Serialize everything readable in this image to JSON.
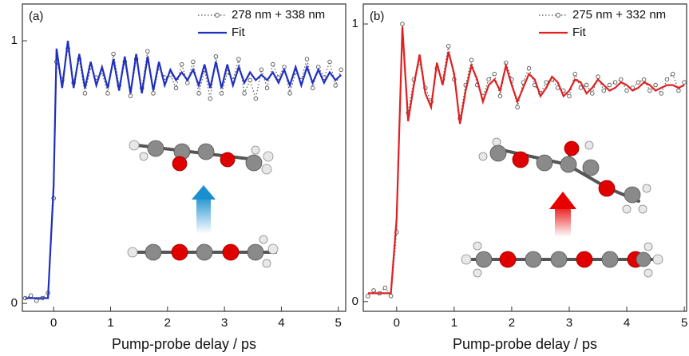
{
  "chart_data": [
    {
      "type": "line",
      "annotation": "(a)",
      "xlabel": "Pump-probe delay / ps",
      "legend": "upper right",
      "xlim": [
        -0.55,
        5.13
      ],
      "ylim": [
        -0.03,
        1.14
      ],
      "xticks": [
        0,
        1,
        2,
        3,
        4,
        5
      ],
      "yticks": [
        0,
        1
      ],
      "x": [
        -0.5,
        -0.4,
        -0.3,
        -0.2,
        -0.1,
        0,
        0.05,
        0.15,
        0.25,
        0.35,
        0.45,
        0.55,
        0.65,
        0.75,
        0.85,
        0.95,
        1.05,
        1.15,
        1.25,
        1.35,
        1.45,
        1.55,
        1.65,
        1.75,
        1.85,
        1.95,
        2.05,
        2.15,
        2.25,
        2.35,
        2.45,
        2.55,
        2.65,
        2.75,
        2.85,
        2.95,
        3.05,
        3.15,
        3.25,
        3.35,
        3.45,
        3.55,
        3.65,
        3.75,
        3.85,
        3.95,
        4.05,
        4.15,
        4.25,
        4.35,
        4.45,
        4.55,
        4.65,
        4.75,
        4.85,
        4.95,
        5.05
      ],
      "series": [
        {
          "name": "278 nm + 338 nm",
          "color": "#555555",
          "linestyle": "dotted",
          "marker": "circle",
          "values": [
            0.02,
            0.03,
            0.01,
            0.02,
            0.04,
            0.4,
            0.92,
            0.85,
            0.97,
            0.84,
            0.93,
            0.8,
            0.9,
            0.86,
            0.88,
            0.8,
            0.95,
            0.83,
            0.92,
            0.79,
            0.93,
            0.82,
            0.96,
            0.8,
            0.9,
            0.86,
            0.87,
            0.82,
            0.91,
            0.84,
            0.92,
            0.8,
            0.89,
            0.78,
            0.94,
            0.8,
            0.88,
            0.85,
            0.93,
            0.8,
            0.85,
            0.78,
            0.89,
            0.82,
            0.91,
            0.86,
            0.9,
            0.8,
            0.88,
            0.85,
            0.93,
            0.82,
            0.9,
            0.86,
            0.92,
            0.83,
            0.89
          ]
        },
        {
          "name": "Fit",
          "color": "#1f2fbf",
          "linestyle": "solid",
          "values": [
            0.02,
            0.02,
            0.02,
            0.02,
            0.02,
            0.45,
            0.97,
            0.82,
            1.0,
            0.82,
            0.95,
            0.82,
            0.92,
            0.83,
            0.9,
            0.82,
            0.93,
            0.81,
            0.94,
            0.8,
            0.95,
            0.8,
            0.94,
            0.81,
            0.92,
            0.83,
            0.89,
            0.85,
            0.88,
            0.85,
            0.89,
            0.83,
            0.91,
            0.82,
            0.92,
            0.82,
            0.91,
            0.83,
            0.9,
            0.84,
            0.88,
            0.85,
            0.87,
            0.85,
            0.88,
            0.84,
            0.89,
            0.83,
            0.9,
            0.83,
            0.9,
            0.84,
            0.89,
            0.84,
            0.88,
            0.85,
            0.87
          ]
        }
      ]
    },
    {
      "type": "line",
      "annotation": "(b)",
      "xlabel": "Pump-probe delay / ps",
      "legend": "upper right",
      "xlim": [
        -0.58,
        5.04
      ],
      "ylim": [
        -0.035,
        1.072
      ],
      "xticks": [
        0,
        1,
        2,
        3,
        4,
        5
      ],
      "yticks": [
        0,
        1
      ],
      "x": [
        -0.5,
        -0.4,
        -0.3,
        -0.2,
        -0.1,
        0,
        0.1,
        0.2,
        0.3,
        0.4,
        0.5,
        0.6,
        0.7,
        0.8,
        0.9,
        1.0,
        1.1,
        1.2,
        1.3,
        1.4,
        1.5,
        1.6,
        1.7,
        1.8,
        1.9,
        2.0,
        2.1,
        2.2,
        2.3,
        2.4,
        2.5,
        2.6,
        2.7,
        2.8,
        2.9,
        3.0,
        3.1,
        3.2,
        3.3,
        3.4,
        3.5,
        3.6,
        3.7,
        3.8,
        3.9,
        4.0,
        4.1,
        4.2,
        4.3,
        4.4,
        4.5,
        4.6,
        4.7,
        4.8,
        4.9,
        5.0
      ],
      "series": [
        {
          "name": "275 nm + 332 nm",
          "color": "#555555",
          "linestyle": "dotted",
          "marker": "circle",
          "values": [
            0.02,
            0.04,
            0.03,
            0.05,
            0.02,
            0.25,
            1.0,
            0.68,
            0.8,
            0.86,
            0.77,
            0.72,
            0.84,
            0.8,
            0.92,
            0.8,
            0.66,
            0.78,
            0.87,
            0.78,
            0.74,
            0.8,
            0.82,
            0.74,
            0.86,
            0.8,
            0.7,
            0.79,
            0.84,
            0.78,
            0.75,
            0.79,
            0.8,
            0.77,
            0.76,
            0.74,
            0.82,
            0.77,
            0.78,
            0.75,
            0.81,
            0.76,
            0.78,
            0.79,
            0.8,
            0.76,
            0.77,
            0.79,
            0.8,
            0.76,
            0.78,
            0.75,
            0.8,
            0.82,
            0.76,
            0.79
          ]
        },
        {
          "name": "Fit",
          "color": "#e02020",
          "linestyle": "solid",
          "values": [
            0.03,
            0.03,
            0.03,
            0.03,
            0.03,
            0.3,
            0.99,
            0.65,
            0.78,
            0.89,
            0.75,
            0.7,
            0.86,
            0.78,
            0.9,
            0.82,
            0.64,
            0.76,
            0.85,
            0.8,
            0.72,
            0.78,
            0.8,
            0.76,
            0.85,
            0.78,
            0.72,
            0.77,
            0.82,
            0.8,
            0.74,
            0.77,
            0.81,
            0.79,
            0.74,
            0.76,
            0.8,
            0.79,
            0.75,
            0.77,
            0.8,
            0.78,
            0.76,
            0.77,
            0.79,
            0.78,
            0.76,
            0.77,
            0.79,
            0.78,
            0.76,
            0.77,
            0.78,
            0.78,
            0.77,
            0.78
          ]
        }
      ]
    }
  ]
}
